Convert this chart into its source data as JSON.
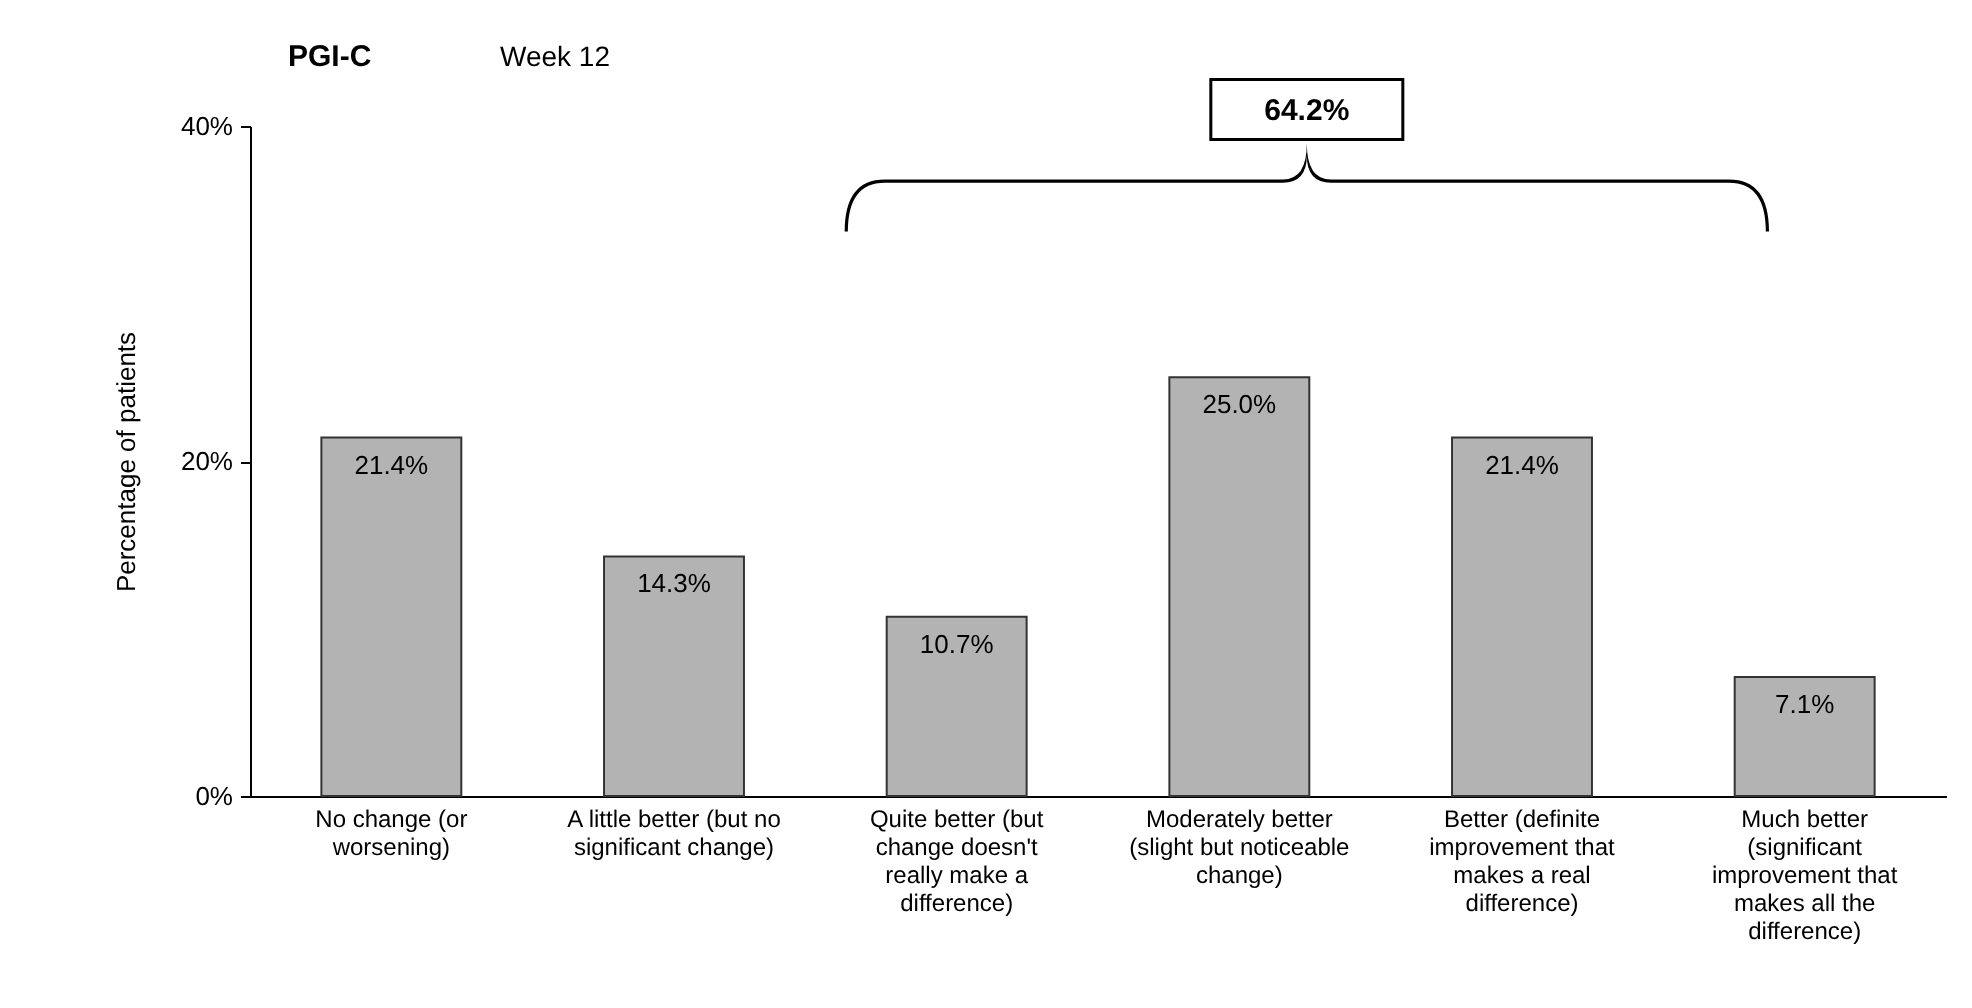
{
  "chart_data": {
    "type": "bar",
    "title": "PGI-C",
    "subtitle": "Week 12",
    "ylabel": "Percentage of patients",
    "categories": [
      "No change (or worsening)",
      "A little better (but no significant change)",
      "Quite better (but change doesn't really make a difference)",
      "Moderately better (slight but noticeable change)",
      "Better (definite improvement that makes a real difference)",
      "Much better (significant improvement that makes all the difference)"
    ],
    "values": [
      21.4,
      14.3,
      10.7,
      25.0,
      21.4,
      7.1
    ],
    "value_labels": [
      "21.4%",
      "14.3%",
      "10.7%",
      "25.0%",
      "21.4%",
      "7.1%"
    ],
    "color": "#b3b3b3",
    "ylim": [
      0,
      40
    ],
    "yticks": [
      {
        "value": 0,
        "label": "0%"
      },
      {
        "value": 20,
        "label": "20%"
      },
      {
        "value": 40,
        "label": "40%"
      }
    ],
    "annotations": [
      "64.2%"
    ]
  }
}
